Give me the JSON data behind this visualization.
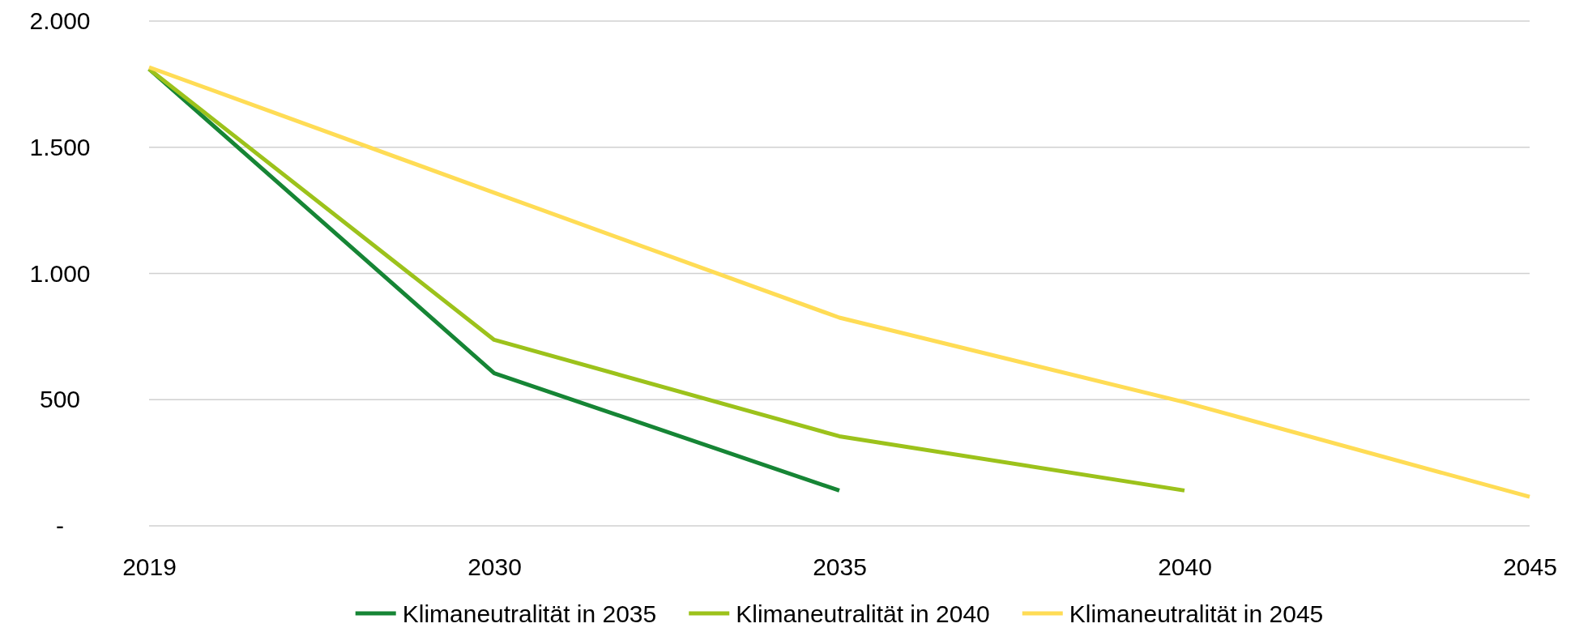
{
  "chart_data": {
    "type": "line",
    "categories": [
      "2019",
      "2030",
      "2035",
      "2040",
      "2045"
    ],
    "series": [
      {
        "name": "Klimaneutralität in 2035",
        "color": "#168535",
        "values": [
          1810,
          605,
          140,
          null,
          null
        ]
      },
      {
        "name": "Klimaneutralität in 2040",
        "color": "#9cc21b",
        "values": [
          1810,
          737,
          355,
          140,
          null
        ]
      },
      {
        "name": "Klimaneutralität in 2045",
        "color": "#ffdc55",
        "values": [
          1817,
          1320,
          825,
          490,
          115
        ]
      }
    ],
    "ylim": [
      0,
      2000
    ],
    "yticks": [
      {
        "value": 0,
        "label": "-"
      },
      {
        "value": 500,
        "label": "500"
      },
      {
        "value": 1000,
        "label": "1.000"
      },
      {
        "value": 1500,
        "label": "1.500"
      },
      {
        "value": 2000,
        "label": "2.000"
      }
    ],
    "grid": "y",
    "legend": "bottom",
    "marker": "none",
    "line_style": "solid"
  }
}
